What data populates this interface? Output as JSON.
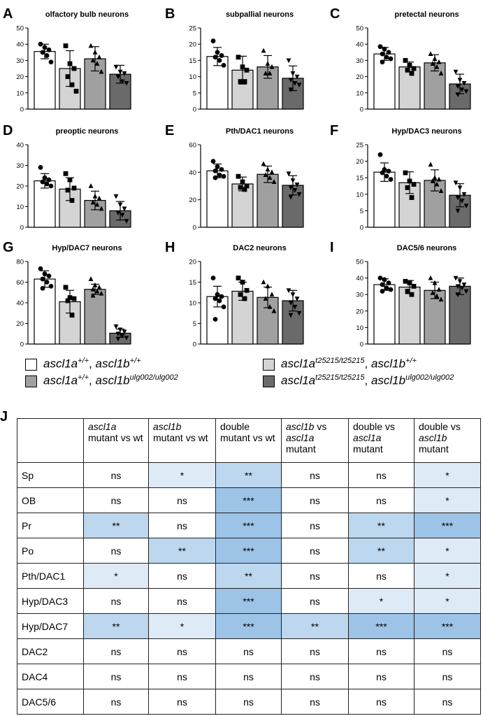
{
  "chart_data": [
    {
      "panel": "A",
      "type": "bar",
      "title": "olfactory bulb neurons",
      "ylim": [
        0,
        50
      ],
      "yticks": [
        0,
        10,
        20,
        30,
        40,
        50
      ],
      "values": [
        35.5,
        25,
        31,
        21.5
      ],
      "errors": [
        4.5,
        11,
        7.5,
        5.5
      ],
      "points": [
        [
          40,
          38,
          36.5,
          35,
          33,
          29
        ],
        [
          39,
          28,
          25,
          20,
          15,
          11
        ],
        [
          39,
          35,
          32,
          30,
          28,
          23
        ],
        [
          26,
          23,
          22,
          20,
          17,
          16
        ]
      ]
    },
    {
      "panel": "B",
      "type": "bar",
      "title": "subpallial neurons",
      "ylim": [
        0,
        25
      ],
      "yticks": [
        0,
        5,
        10,
        15,
        20,
        25
      ],
      "values": [
        16.2,
        12,
        13,
        9.5
      ],
      "errors": [
        2.8,
        4.3,
        3.5,
        3.8
      ],
      "points": [
        [
          21,
          17.5,
          16.5,
          16,
          15,
          13.5
        ],
        [
          16,
          13,
          12,
          8.5,
          8.5
        ],
        [
          18,
          14,
          13,
          11,
          11
        ],
        [
          15,
          11,
          10,
          9,
          8,
          7.5,
          6
        ]
      ]
    },
    {
      "panel": "C",
      "type": "bar",
      "title": "pretectal neurons",
      "ylim": [
        0,
        50
      ],
      "yticks": [
        0,
        10,
        20,
        30,
        40,
        50
      ],
      "values": [
        34,
        26,
        28.5,
        15.5
      ],
      "errors": [
        4,
        3,
        5,
        6
      ],
      "points": [
        [
          38.5,
          37,
          35,
          34,
          32,
          31,
          29
        ],
        [
          30,
          27,
          25,
          24,
          22
        ],
        [
          34,
          31,
          29,
          28,
          26,
          22
        ],
        [
          23,
          18,
          16,
          14,
          12,
          11,
          9
        ]
      ]
    },
    {
      "panel": "D",
      "type": "bar",
      "title": "preoptic neurons",
      "ylim": [
        0,
        40
      ],
      "yticks": [
        0,
        10,
        20,
        30,
        40
      ],
      "values": [
        22.5,
        18.5,
        13,
        8
      ],
      "errors": [
        3.5,
        5.5,
        4.5,
        4.5
      ],
      "points": [
        [
          29,
          24,
          23,
          22,
          21,
          20
        ],
        [
          26,
          23,
          19,
          18,
          13
        ],
        [
          20,
          15,
          14,
          12,
          11,
          9
        ],
        [
          15,
          11,
          9,
          7,
          6,
          3
        ]
      ]
    },
    {
      "panel": "E",
      "type": "bar",
      "title": "Pth/DAC1 neurons",
      "ylim": [
        0,
        60
      ],
      "yticks": [
        0,
        20,
        40,
        60
      ],
      "values": [
        41,
        31.5,
        38.5,
        30.5
      ],
      "errors": [
        5,
        5,
        6,
        7
      ],
      "points": [
        [
          48,
          44,
          42,
          41,
          38,
          37,
          36
        ],
        [
          37,
          33,
          30,
          29,
          27.5
        ],
        [
          46,
          42,
          40,
          38,
          36,
          33
        ],
        [
          39,
          34,
          31,
          29,
          27,
          24,
          22
        ]
      ]
    },
    {
      "panel": "F",
      "type": "bar",
      "title": "Hyp/DAC3 neurons",
      "ylim": [
        0,
        25
      ],
      "yticks": [
        0,
        5,
        10,
        15,
        20,
        25
      ],
      "values": [
        16.7,
        13.5,
        14.2,
        9.7
      ],
      "errors": [
        2.8,
        3.3,
        3.2,
        3.5
      ],
      "points": [
        [
          22,
          17.5,
          17,
          16.5,
          15.5,
          14.5
        ],
        [
          16.5,
          14,
          13,
          12,
          9
        ],
        [
          19,
          15,
          14.5,
          14,
          13,
          11
        ],
        [
          13.5,
          12,
          10,
          9,
          8,
          6.5,
          5
        ]
      ]
    },
    {
      "panel": "G",
      "type": "bar",
      "title": "Hyp/DAC7 neurons",
      "ylim": [
        0,
        80
      ],
      "yticks": [
        0,
        20,
        40,
        60,
        80
      ],
      "values": [
        63,
        41,
        53,
        10.5
      ],
      "errors": [
        8,
        11,
        5,
        4
      ],
      "points": [
        [
          73,
          68,
          66,
          63,
          60,
          56,
          54
        ],
        [
          55,
          45,
          44,
          42,
          28
        ],
        [
          63,
          57,
          55,
          53,
          51,
          49,
          47
        ],
        [
          17,
          14,
          12,
          10,
          8,
          6,
          5
        ]
      ]
    },
    {
      "panel": "H",
      "type": "bar",
      "title": "DAC2 neurons",
      "ylim": [
        0,
        20
      ],
      "yticks": [
        0,
        5,
        10,
        15,
        20
      ],
      "values": [
        11.5,
        12.8,
        11.3,
        10.5
      ],
      "errors": [
        2.5,
        2.2,
        2.5,
        2.5
      ],
      "points": [
        [
          16,
          12,
          11.5,
          11,
          10.5,
          9,
          6
        ],
        [
          16,
          15,
          13,
          12,
          11
        ],
        [
          15,
          14,
          12,
          11,
          9,
          8
        ],
        [
          13,
          12,
          11,
          10,
          9,
          7.5,
          7
        ]
      ]
    },
    {
      "panel": "I",
      "type": "bar",
      "title": "DAC5/6 neurons",
      "ylim": [
        0,
        50
      ],
      "yticks": [
        0,
        10,
        20,
        30,
        40,
        50
      ],
      "values": [
        36,
        34.5,
        32.5,
        35
      ],
      "errors": [
        3.5,
        4,
        5,
        5
      ],
      "points": [
        [
          40,
          39,
          37,
          36,
          34,
          33,
          32
        ],
        [
          38,
          37,
          35,
          32,
          30
        ],
        [
          40,
          37,
          33,
          31,
          29,
          27
        ],
        [
          40,
          38,
          36,
          35,
          34,
          32,
          30
        ]
      ]
    }
  ],
  "legend": [
    {
      "base": "ascl1a",
      "sup1": "+/+",
      "mid": ", ",
      "base2": "ascl1b",
      "sup2": "+/+",
      "color": "#ffffff"
    },
    {
      "base": "ascl1a",
      "sup1": "t25215/t25215",
      "mid": ", ",
      "base2": "ascl1b",
      "sup2": "+/+",
      "color": "#d4d4d4"
    },
    {
      "base": "ascl1a",
      "sup1": "+/+",
      "mid": ", ",
      "base2": "ascl1b",
      "sup2": "ulg002/ulg002",
      "color": "#a0a0a0"
    },
    {
      "base": "ascl1a",
      "sup1": "t25215/t25215",
      "mid": ", ",
      "base2": "ascl1b",
      "sup2": "ulg002/ulg002",
      "color": "#6a6a6a"
    }
  ],
  "group_colors": [
    "#ffffff",
    "#d4d4d4",
    "#a0a0a0",
    "#6a6a6a"
  ],
  "table": {
    "panel_label": "J",
    "headers": [
      {
        "it": "ascl1a",
        "rest": "mutant vs wt"
      },
      {
        "it": "ascl1b",
        "rest": "mutant vs wt"
      },
      {
        "pre": "double mutant vs wt"
      },
      {
        "it": "ascl1b",
        "rest": "vs",
        "it2": "ascl1a",
        "rest2": "mutant"
      },
      {
        "pre": "double vs",
        "it2": "ascl1a",
        "rest2": "mutant"
      },
      {
        "pre": "double vs",
        "it2": "ascl1b",
        "rest2": "mutant"
      }
    ],
    "rows": [
      {
        "label": "Sp",
        "cells": [
          "ns",
          "*",
          "**",
          "ns",
          "ns",
          "*"
        ]
      },
      {
        "label": "OB",
        "cells": [
          "ns",
          "ns",
          "***",
          "ns",
          "ns",
          "*"
        ]
      },
      {
        "label": "Pr",
        "cells": [
          "**",
          "ns",
          "***",
          "ns",
          "**",
          "***"
        ]
      },
      {
        "label": "Po",
        "cells": [
          "ns",
          "**",
          "***",
          "ns",
          "**",
          "*"
        ]
      },
      {
        "label": "Pth/DAC1",
        "cells": [
          "*",
          "ns",
          "**",
          "ns",
          "ns",
          "*"
        ]
      },
      {
        "label": "Hyp/DAC3",
        "cells": [
          "ns",
          "ns",
          "***",
          "ns",
          "*",
          "*"
        ]
      },
      {
        "label": "Hyp/DAC7",
        "cells": [
          "**",
          "*",
          "***",
          "**",
          "***",
          "***"
        ]
      },
      {
        "label": "DAC2",
        "cells": [
          "ns",
          "ns",
          "ns",
          "ns",
          "ns",
          "ns"
        ]
      },
      {
        "label": "DAC4",
        "cells": [
          "ns",
          "ns",
          "ns",
          "ns",
          "ns",
          "ns"
        ]
      },
      {
        "label": "DAC5/6",
        "cells": [
          "ns",
          "ns",
          "ns",
          "ns",
          "ns",
          "ns"
        ]
      }
    ]
  }
}
